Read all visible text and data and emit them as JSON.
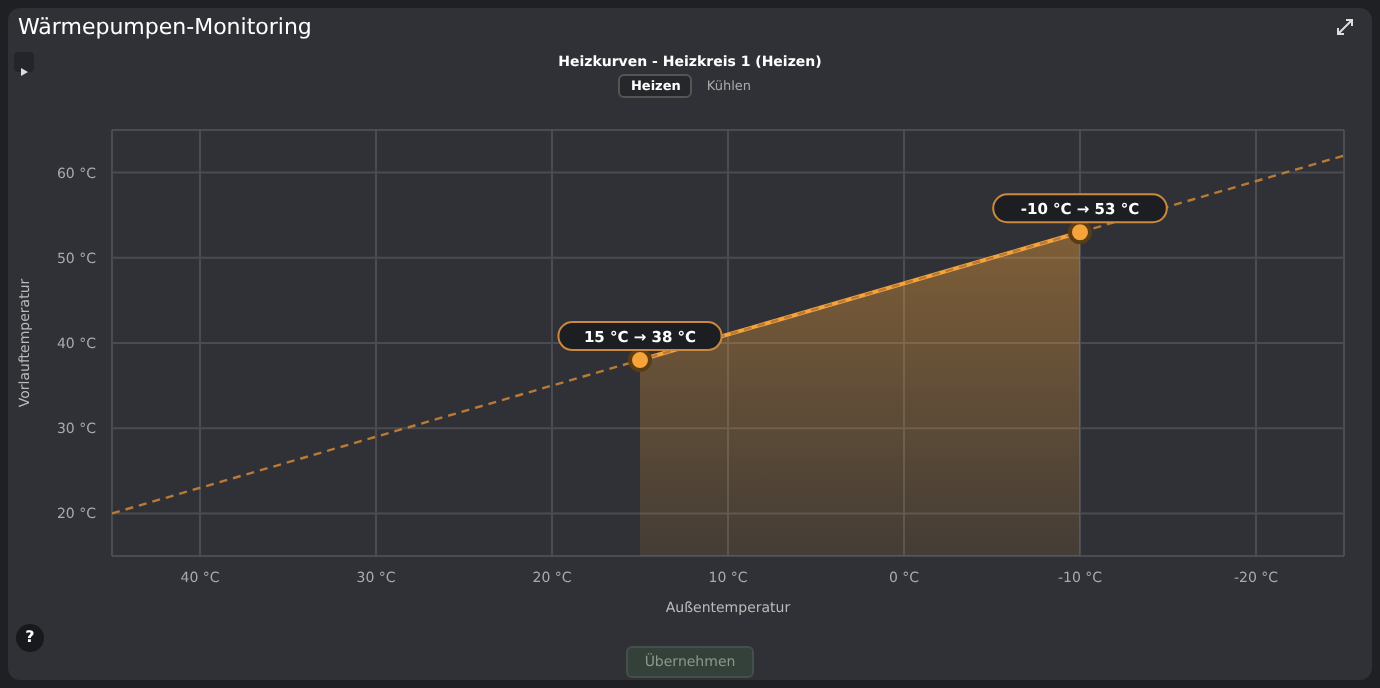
{
  "chart_data": {
    "type": "area",
    "title": "Heizkurven - Heizkreis 1 (Heizen)",
    "xlabel": "Außentemperatur",
    "ylabel": "Vorlauftemperatur",
    "annotations": [
      "Wärmepumpen-Monitoring",
      "Heizen",
      "Kühlen",
      "Übernehmen",
      "?",
      {
        "text": "15 °C → 38 °C",
        "x": 15,
        "y": 38
      },
      {
        "text": "-10 °C → 53 °C",
        "x": -10,
        "y": 53
      }
    ],
    "series": [
      {
        "type": "line",
        "color": "#b97a36",
        "line_style": "dashed",
        "marker": "none",
        "x": [
          45,
          -25
        ],
        "values": [
          20,
          62
        ]
      },
      {
        "color": "#f5a33a",
        "marker": "circle",
        "x": [
          15,
          -10
        ],
        "values": [
          38,
          53
        ]
      }
    ],
    "xlim": [
      45,
      -25
    ],
    "xticks": [
      {
        "value": 40,
        "label": "40 °C"
      },
      {
        "value": 30,
        "label": "30 °C"
      },
      {
        "value": 20,
        "label": "20 °C"
      },
      {
        "value": 10,
        "label": "10 °C"
      },
      {
        "value": 0,
        "label": "0 °C"
      },
      {
        "value": -10,
        "label": "-10 °C"
      },
      {
        "value": -20,
        "label": "-20 °C"
      }
    ],
    "ylim": [
      15,
      65
    ],
    "yticks": [
      {
        "value": 20,
        "label": "20 °C"
      },
      {
        "value": 30,
        "label": "30 °C"
      },
      {
        "value": 40,
        "label": "40 °C"
      },
      {
        "value": 50,
        "label": "50 °C"
      },
      {
        "value": 60,
        "label": "60 °C"
      }
    ],
    "grid": true
  }
}
